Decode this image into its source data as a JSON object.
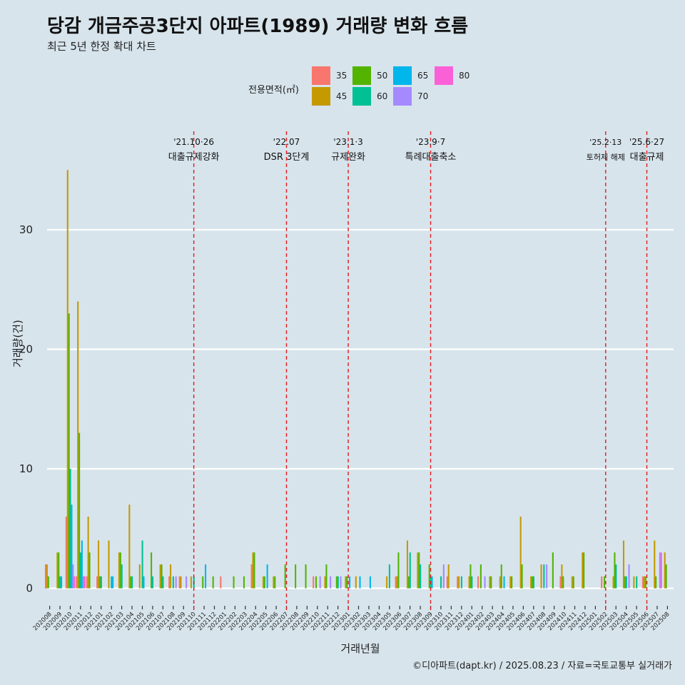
{
  "header": {
    "title": "당감 개금주공3단지 아파트(1989) 거래량 변화 흐름",
    "subtitle": "최근 5년 한정 확대 차트"
  },
  "legend": {
    "title": "전용면적(㎡)",
    "items": [
      {
        "label": "35",
        "color": "#F8766D"
      },
      {
        "label": "45",
        "color": "#C49A00"
      },
      {
        "label": "50",
        "color": "#53B400"
      },
      {
        "label": "60",
        "color": "#00C094"
      },
      {
        "label": "65",
        "color": "#00B6EB"
      },
      {
        "label": "70",
        "color": "#A58AFF"
      },
      {
        "label": "80",
        "color": "#FB61D7"
      }
    ]
  },
  "axes": {
    "xlabel": "거래년월",
    "ylabel": "거래량(건)"
  },
  "caption": "©디아파트(dapt.kr) / 2025.08.23 / 자료=국토교통부 실거래가",
  "chart_data": {
    "type": "bar",
    "x": [
      "202008",
      "202009",
      "202010",
      "202011",
      "202012",
      "202101",
      "202102",
      "202103",
      "202104",
      "202105",
      "202106",
      "202107",
      "202108",
      "202109",
      "202110",
      "202111",
      "202112",
      "202201",
      "202202",
      "202203",
      "202204",
      "202205",
      "202206",
      "202207",
      "202208",
      "202209",
      "202210",
      "202211",
      "202212",
      "202301",
      "202302",
      "202303",
      "202304",
      "202305",
      "202306",
      "202307",
      "202308",
      "202309",
      "202310",
      "202311",
      "202312",
      "202401",
      "202402",
      "202403",
      "202404",
      "202405",
      "202406",
      "202407",
      "202408",
      "202409",
      "202410",
      "202411",
      "202412",
      "202501",
      "202502",
      "202503",
      "202504",
      "202505",
      "202506",
      "202507",
      "202508"
    ],
    "ylim": [
      0,
      37
    ],
    "yticks": [
      0,
      10,
      20,
      30
    ],
    "grid": true,
    "legend_position": "top",
    "series": [
      {
        "name": "35",
        "values": [
          2,
          0,
          6,
          1,
          1,
          1,
          0,
          0,
          0,
          0,
          0,
          0,
          1,
          1,
          0,
          0,
          0,
          1,
          0,
          0,
          2,
          0,
          0,
          0,
          0,
          0,
          1,
          0,
          0,
          0,
          0,
          0,
          0,
          0,
          1,
          0,
          0,
          0,
          0,
          1,
          1,
          0,
          1,
          0,
          0,
          0,
          0,
          0,
          0,
          0,
          1,
          0,
          0,
          0,
          1,
          0,
          0,
          0,
          1,
          0,
          0
        ]
      },
      {
        "name": "45",
        "values": [
          2,
          3,
          35,
          24,
          6,
          4,
          4,
          3,
          7,
          2,
          0,
          2,
          2,
          1,
          1,
          0,
          0,
          0,
          0,
          0,
          3,
          1,
          1,
          0,
          0,
          0,
          0,
          1,
          0,
          1,
          1,
          0,
          0,
          1,
          1,
          4,
          3,
          0,
          0,
          2,
          1,
          1,
          0,
          1,
          1,
          1,
          6,
          1,
          2,
          0,
          2,
          1,
          3,
          0,
          0,
          1,
          4,
          1,
          1,
          4,
          3
        ]
      },
      {
        "name": "50",
        "values": [
          1,
          3,
          23,
          13,
          3,
          1,
          0,
          3,
          1,
          0,
          3,
          2,
          0,
          0,
          0,
          1,
          1,
          0,
          1,
          1,
          3,
          1,
          1,
          2,
          2,
          2,
          1,
          2,
          1,
          1,
          0,
          0,
          0,
          0,
          3,
          1,
          3,
          2,
          0,
          0,
          0,
          2,
          2,
          1,
          2,
          1,
          2,
          1,
          0,
          3,
          1,
          1,
          3,
          0,
          1,
          3,
          1,
          0,
          1,
          1,
          2
        ]
      },
      {
        "name": "60",
        "values": [
          0,
          1,
          10,
          3,
          0,
          1,
          1,
          2,
          1,
          4,
          1,
          1,
          1,
          0,
          1,
          0,
          0,
          0,
          0,
          0,
          0,
          0,
          0,
          0,
          0,
          0,
          0,
          0,
          1,
          0,
          0,
          0,
          0,
          2,
          0,
          3,
          2,
          1,
          1,
          0,
          1,
          1,
          0,
          0,
          0,
          0,
          0,
          1,
          2,
          0,
          0,
          0,
          0,
          0,
          0,
          2,
          1,
          1,
          0,
          0,
          0
        ]
      },
      {
        "name": "65",
        "values": [
          0,
          1,
          7,
          4,
          0,
          0,
          1,
          0,
          0,
          1,
          0,
          0,
          0,
          0,
          0,
          2,
          0,
          0,
          0,
          0,
          0,
          2,
          0,
          0,
          0,
          0,
          0,
          0,
          0,
          1,
          1,
          1,
          0,
          0,
          0,
          0,
          0,
          1,
          0,
          0,
          0,
          0,
          0,
          0,
          1,
          0,
          0,
          0,
          0,
          0,
          0,
          0,
          0,
          0,
          0,
          0,
          0,
          0,
          0,
          0,
          0
        ]
      },
      {
        "name": "70",
        "values": [
          0,
          0,
          2,
          1,
          0,
          0,
          0,
          0,
          0,
          0,
          0,
          0,
          1,
          1,
          0,
          0,
          0,
          0,
          0,
          0,
          0,
          0,
          0,
          0,
          0,
          0,
          1,
          1,
          1,
          0,
          0,
          0,
          0,
          0,
          0,
          0,
          0,
          0,
          2,
          0,
          0,
          0,
          1,
          0,
          0,
          0,
          0,
          0,
          2,
          0,
          0,
          0,
          0,
          0,
          0,
          0,
          2,
          0,
          0,
          3,
          0
        ]
      },
      {
        "name": "80",
        "values": [
          0,
          0,
          1,
          1,
          0,
          0,
          0,
          0,
          0,
          0,
          0,
          0,
          0,
          0,
          0,
          0,
          0,
          0,
          0,
          0,
          0,
          0,
          0,
          0,
          0,
          0,
          0,
          0,
          0,
          0,
          0,
          0,
          0,
          0,
          0,
          0,
          0,
          0,
          0,
          0,
          0,
          0,
          0,
          0,
          0,
          0,
          0,
          0,
          0,
          0,
          0,
          0,
          0,
          0,
          0,
          0,
          0,
          0,
          0,
          3,
          0
        ]
      }
    ],
    "annotations": [
      {
        "at": "202110",
        "date": "'21.10·26",
        "text": "대출규제강화"
      },
      {
        "at": "202207",
        "date": "'22.07",
        "text": "DSR 3단계"
      },
      {
        "at": "202301",
        "date": "'23.1·3",
        "text": "규제완화"
      },
      {
        "at": "202309",
        "date": "'23.9·7",
        "text": "특례대출축소"
      },
      {
        "at": "202502",
        "date": "'25.2·13",
        "text": "토허제 해제"
      },
      {
        "at": "202506",
        "date": "'25.6·27",
        "text": "대출규제"
      }
    ]
  }
}
